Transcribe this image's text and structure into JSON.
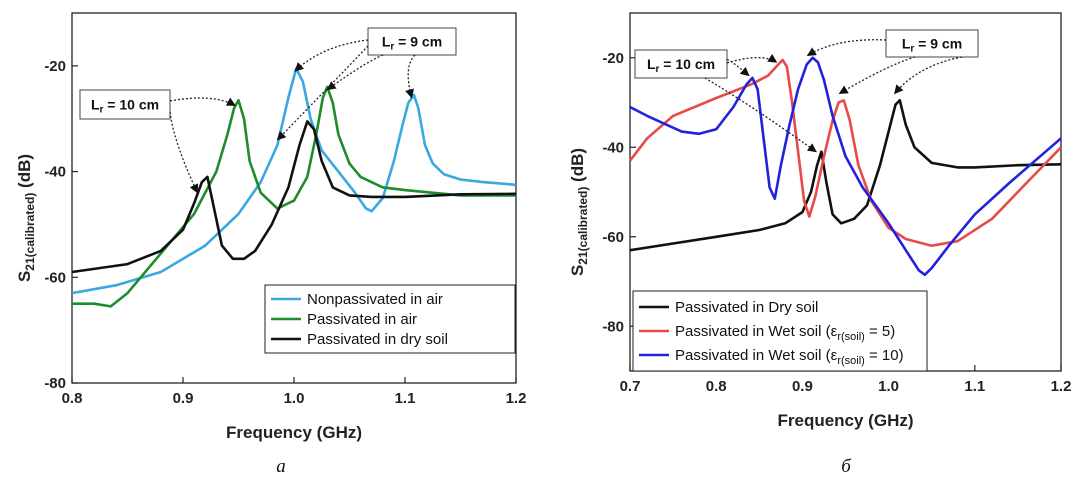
{
  "chart_data": [
    {
      "type": "line",
      "panel_label": "a",
      "xlabel": "Frequency (GHz)",
      "ylabel_main": "S",
      "ylabel_sub": "21(calibrated)",
      "ylabel_unit": " (dB)",
      "xlim": [
        0.8,
        1.2
      ],
      "ylim": [
        -80,
        -10
      ],
      "xticks": [
        "0.8",
        "0.9",
        "1.0",
        "1.1",
        "1.2"
      ],
      "yticks": [
        "-20",
        "-40",
        "-60",
        "-80"
      ],
      "legend_position": "bottom-right",
      "grid": false,
      "annotations": [
        {
          "text_main": "L",
          "text_sub": "r",
          "text_rest": " = 10 cm"
        },
        {
          "text_main": "L",
          "text_sub": "r",
          "text_rest": " = 9 cm"
        }
      ],
      "series": [
        {
          "name": "Nonpassivated in air",
          "color": "#3aa8e0",
          "x": [
            0.8,
            0.84,
            0.88,
            0.92,
            0.95,
            0.97,
            0.985,
            0.995,
            1.002,
            1.008,
            1.015,
            1.025,
            1.04,
            1.055,
            1.065,
            1.07,
            1.08,
            1.09,
            1.098,
            1.103,
            1.108,
            1.112,
            1.118,
            1.125,
            1.135,
            1.15,
            1.17,
            1.2
          ],
          "y": [
            -63,
            -61.5,
            -59,
            -54,
            -48,
            -42,
            -35,
            -26,
            -20.5,
            -23,
            -30,
            -36,
            -40,
            -44,
            -47,
            -47.5,
            -45,
            -38,
            -31,
            -27,
            -25.5,
            -28,
            -35,
            -38.5,
            -40.5,
            -41.5,
            -42,
            -42.5
          ]
        },
        {
          "name": "Passivated in air",
          "color": "#1e8c2a",
          "x": [
            0.8,
            0.82,
            0.835,
            0.85,
            0.87,
            0.89,
            0.91,
            0.93,
            0.94,
            0.946,
            0.95,
            0.955,
            0.96,
            0.97,
            0.985,
            1.0,
            1.012,
            1.02,
            1.026,
            1.03,
            1.035,
            1.04,
            1.05,
            1.06,
            1.08,
            1.1,
            1.15,
            1.2
          ],
          "y": [
            -65,
            -65,
            -65.5,
            -63,
            -58,
            -53,
            -48,
            -40,
            -33,
            -28,
            -26.5,
            -30,
            -38,
            -44,
            -47,
            -45.5,
            -41,
            -33,
            -26,
            -24,
            -27,
            -33,
            -38.5,
            -41,
            -43,
            -43.5,
            -44.5,
            -44.5
          ]
        },
        {
          "name": "Passivated in dry soil",
          "color": "#111111",
          "x": [
            0.8,
            0.85,
            0.88,
            0.9,
            0.91,
            0.917,
            0.922,
            0.928,
            0.935,
            0.945,
            0.955,
            0.965,
            0.98,
            0.995,
            1.005,
            1.012,
            1.018,
            1.025,
            1.035,
            1.05,
            1.07,
            1.1,
            1.15,
            1.2
          ],
          "y": [
            -59,
            -57.5,
            -55,
            -51,
            -46,
            -42,
            -41,
            -47,
            -54,
            -56.5,
            -56.5,
            -55,
            -50,
            -43,
            -35,
            -30.5,
            -32,
            -38,
            -43,
            -44.5,
            -44.8,
            -44.8,
            -44.3,
            -44.2
          ]
        }
      ]
    },
    {
      "type": "line",
      "panel_label": "б",
      "xlabel": "Frequency (GHz)",
      "ylabel_main": "S",
      "ylabel_sub": "21(calibrated)",
      "ylabel_unit": " (dB)",
      "xlim": [
        0.7,
        1.2
      ],
      "ylim": [
        -90,
        -10
      ],
      "xticks": [
        "0.7",
        "0.8",
        "0.9",
        "1.0",
        "1.1",
        "1.2"
      ],
      "yticks": [
        "-20",
        "-40",
        "-60",
        "-80"
      ],
      "legend_position": "bottom-left",
      "grid": false,
      "annotations": [
        {
          "text_main": "L",
          "text_sub": "r",
          "text_rest": " = 10 cm"
        },
        {
          "text_main": "L",
          "text_sub": "r",
          "text_rest": " = 9 cm"
        }
      ],
      "series": [
        {
          "name": "Passivated in Dry soil",
          "color": "#111111",
          "x": [
            0.7,
            0.75,
            0.8,
            0.85,
            0.88,
            0.9,
            0.91,
            0.917,
            0.922,
            0.928,
            0.935,
            0.945,
            0.96,
            0.975,
            0.99,
            1.002,
            1.008,
            1.013,
            1.02,
            1.03,
            1.05,
            1.08,
            1.1,
            1.15,
            1.2
          ],
          "y": [
            -63,
            -61.5,
            -60,
            -58.5,
            -57,
            -54.5,
            -50,
            -44,
            -41,
            -48,
            -55,
            -57,
            -56,
            -53,
            -44,
            -35,
            -30.5,
            -29.5,
            -35,
            -40,
            -43.5,
            -44.5,
            -44.5,
            -44,
            -43.8
          ]
        },
        {
          "name": "Passivated in Wet soil (ε",
          "name_sub": "r(soil)",
          "name_rest": " = 5)",
          "color": "#e84a4a",
          "x": [
            0.7,
            0.72,
            0.75,
            0.8,
            0.84,
            0.86,
            0.872,
            0.877,
            0.882,
            0.888,
            0.895,
            0.902,
            0.908,
            0.915,
            0.925,
            0.935,
            0.942,
            0.948,
            0.955,
            0.965,
            0.98,
            1.0,
            1.02,
            1.05,
            1.08,
            1.12,
            1.16,
            1.2
          ],
          "y": [
            -43,
            -38,
            -33,
            -29,
            -26,
            -24,
            -21.5,
            -20.5,
            -22,
            -30,
            -41,
            -52,
            -55.5,
            -51,
            -42,
            -34,
            -30,
            -29.5,
            -34,
            -44,
            -52,
            -58,
            -60.5,
            -62,
            -61,
            -56,
            -48,
            -40
          ]
        },
        {
          "name": "Passivated in Wet soil (ε",
          "name_sub": "r(soil)",
          "name_rest": " = 10)",
          "color": "#2222dd",
          "x": [
            0.7,
            0.72,
            0.76,
            0.78,
            0.8,
            0.82,
            0.835,
            0.842,
            0.848,
            0.855,
            0.862,
            0.868,
            0.875,
            0.885,
            0.895,
            0.905,
            0.912,
            0.918,
            0.925,
            0.935,
            0.95,
            0.97,
            1.0,
            1.02,
            1.035,
            1.042,
            1.05,
            1.07,
            1.1,
            1.14,
            1.17,
            1.2
          ],
          "y": [
            -31,
            -33,
            -36.5,
            -37,
            -36,
            -31,
            -26,
            -24.5,
            -27,
            -38,
            -49,
            -51.5,
            -44,
            -35,
            -27,
            -21.5,
            -20,
            -21,
            -25,
            -33,
            -42,
            -49,
            -57,
            -63,
            -67.5,
            -68.5,
            -67,
            -62,
            -55,
            -48,
            -43,
            -38
          ]
        }
      ]
    }
  ]
}
